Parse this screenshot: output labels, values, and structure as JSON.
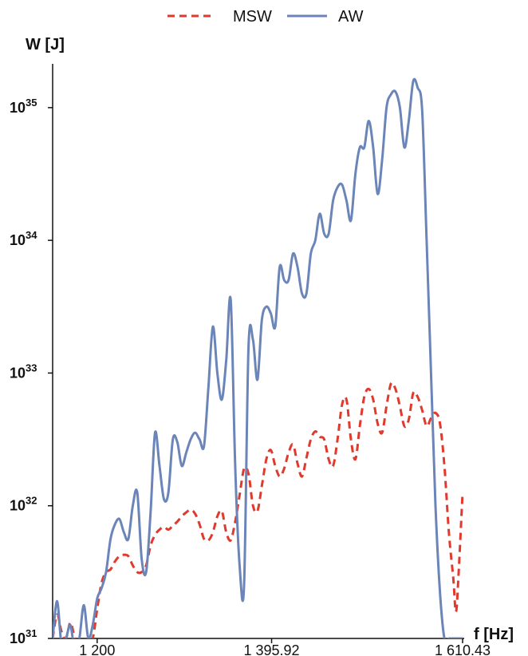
{
  "chart_data": {
    "type": "line",
    "title": "",
    "xlabel": "f [Hz]",
    "ylabel": "W [J]",
    "y_scale": "log",
    "xlim": [
      1150,
      1610.43
    ],
    "ylim_exponent": [
      31,
      35.33
    ],
    "x_ticks": [
      {
        "value": 1200,
        "label": "1 200"
      },
      {
        "value": 1395.92,
        "label": "1 395.92"
      },
      {
        "value": 1610.43,
        "label": "1 610.43"
      }
    ],
    "y_ticks": [
      {
        "exponent": 31,
        "base": "10",
        "exp_label": "31"
      },
      {
        "exponent": 32,
        "base": "10",
        "exp_label": "32"
      },
      {
        "exponent": 33,
        "base": "10",
        "exp_label": "33"
      },
      {
        "exponent": 34,
        "base": "10",
        "exp_label": "34"
      },
      {
        "exponent": 35,
        "base": "10",
        "exp_label": "35"
      }
    ],
    "grid": false,
    "legend_position": "top-center",
    "series": [
      {
        "name": "MSW",
        "color": "#e03a2e",
        "dash": true,
        "x": [
          1150,
          1155,
          1160,
          1165,
          1170,
          1175,
          1180,
          1185,
          1190,
          1195,
          1200,
          1205,
          1210,
          1215,
          1220,
          1225,
          1230,
          1235,
          1240,
          1245,
          1250,
          1255,
          1260,
          1265,
          1270,
          1275,
          1280,
          1285,
          1290,
          1295,
          1300,
          1305,
          1310,
          1315,
          1320,
          1325,
          1330,
          1335,
          1340,
          1345,
          1350,
          1355,
          1360,
          1365,
          1370,
          1375,
          1380,
          1385,
          1390,
          1395,
          1400,
          1405,
          1410,
          1415,
          1420,
          1425,
          1430,
          1435,
          1440,
          1445,
          1450,
          1455,
          1460,
          1465,
          1470,
          1475,
          1480,
          1485,
          1490,
          1495,
          1500,
          1505,
          1510,
          1515,
          1520,
          1525,
          1530,
          1535,
          1540,
          1545,
          1550,
          1555,
          1560,
          1565,
          1570,
          1575,
          1580,
          1585,
          1590,
          1595,
          1600,
          1603,
          1606,
          1610.43
        ],
        "log10_values": [
          31.0,
          31.18,
          31.05,
          31.0,
          31.12,
          31.0,
          30.95,
          30.97,
          31.0,
          31.0,
          31.22,
          31.42,
          31.5,
          31.52,
          31.58,
          31.62,
          31.63,
          31.62,
          31.55,
          31.5,
          31.5,
          31.55,
          31.7,
          31.78,
          31.82,
          31.84,
          31.82,
          31.85,
          31.88,
          31.92,
          31.95,
          31.97,
          31.94,
          31.86,
          31.75,
          31.74,
          31.8,
          31.92,
          31.96,
          31.8,
          31.74,
          31.88,
          32.08,
          32.28,
          32.24,
          32.0,
          31.96,
          32.15,
          32.35,
          32.42,
          32.3,
          32.22,
          32.28,
          32.4,
          32.46,
          32.32,
          32.22,
          32.36,
          32.5,
          32.56,
          32.52,
          32.5,
          32.35,
          32.3,
          32.5,
          32.76,
          32.8,
          32.5,
          32.35,
          32.6,
          32.82,
          32.88,
          32.8,
          32.62,
          32.55,
          32.75,
          32.92,
          32.88,
          32.75,
          32.6,
          32.65,
          32.85,
          32.82,
          32.72,
          32.6,
          32.66,
          32.7,
          32.62,
          32.3,
          31.8,
          31.45,
          31.2,
          31.5,
          32.1
        ]
      },
      {
        "name": "AW",
        "color": "#6b85b8",
        "dash": false,
        "x": [
          1150,
          1155,
          1160,
          1165,
          1170,
          1175,
          1180,
          1185,
          1190,
          1195,
          1200,
          1205,
          1210,
          1215,
          1220,
          1225,
          1230,
          1235,
          1240,
          1245,
          1250,
          1255,
          1260,
          1265,
          1270,
          1275,
          1280,
          1285,
          1290,
          1295,
          1300,
          1305,
          1310,
          1315,
          1320,
          1325,
          1330,
          1335,
          1340,
          1345,
          1350,
          1355,
          1360,
          1365,
          1370,
          1375,
          1380,
          1385,
          1390,
          1395,
          1400,
          1405,
          1410,
          1415,
          1420,
          1425,
          1430,
          1435,
          1440,
          1445,
          1450,
          1455,
          1460,
          1465,
          1470,
          1475,
          1480,
          1485,
          1490,
          1495,
          1500,
          1505,
          1510,
          1515,
          1520,
          1525,
          1530,
          1535,
          1540,
          1545,
          1550,
          1555,
          1560,
          1565,
          1570,
          1575,
          1580,
          1585,
          1590,
          1595,
          1600,
          1603,
          1606,
          1610.43
        ],
        "log10_values": [
          31.0,
          31.28,
          30.95,
          31.0,
          31.1,
          30.9,
          31.0,
          31.25,
          31.0,
          31.1,
          31.3,
          31.38,
          31.5,
          31.75,
          31.86,
          31.9,
          31.8,
          31.75,
          32.0,
          32.1,
          31.6,
          31.5,
          31.95,
          32.55,
          32.3,
          32.05,
          32.1,
          32.5,
          32.48,
          32.3,
          32.4,
          32.5,
          32.55,
          32.5,
          32.45,
          32.9,
          33.35,
          33.0,
          32.8,
          33.1,
          33.55,
          32.3,
          31.55,
          31.4,
          33.2,
          33.25,
          32.95,
          33.4,
          33.5,
          33.45,
          33.35,
          33.8,
          33.7,
          33.7,
          33.9,
          33.8,
          33.6,
          33.6,
          33.9,
          34.0,
          34.2,
          34.05,
          34.05,
          34.3,
          34.4,
          34.42,
          34.3,
          34.15,
          34.5,
          34.7,
          34.7,
          34.9,
          34.7,
          34.35,
          34.6,
          35.0,
          35.1,
          35.12,
          35.0,
          34.7,
          34.9,
          35.2,
          35.15,
          34.98,
          34.0,
          33.0,
          32.0,
          31.35,
          31.0,
          31.0,
          31.0,
          31.0,
          31.0,
          31.0
        ]
      }
    ]
  }
}
